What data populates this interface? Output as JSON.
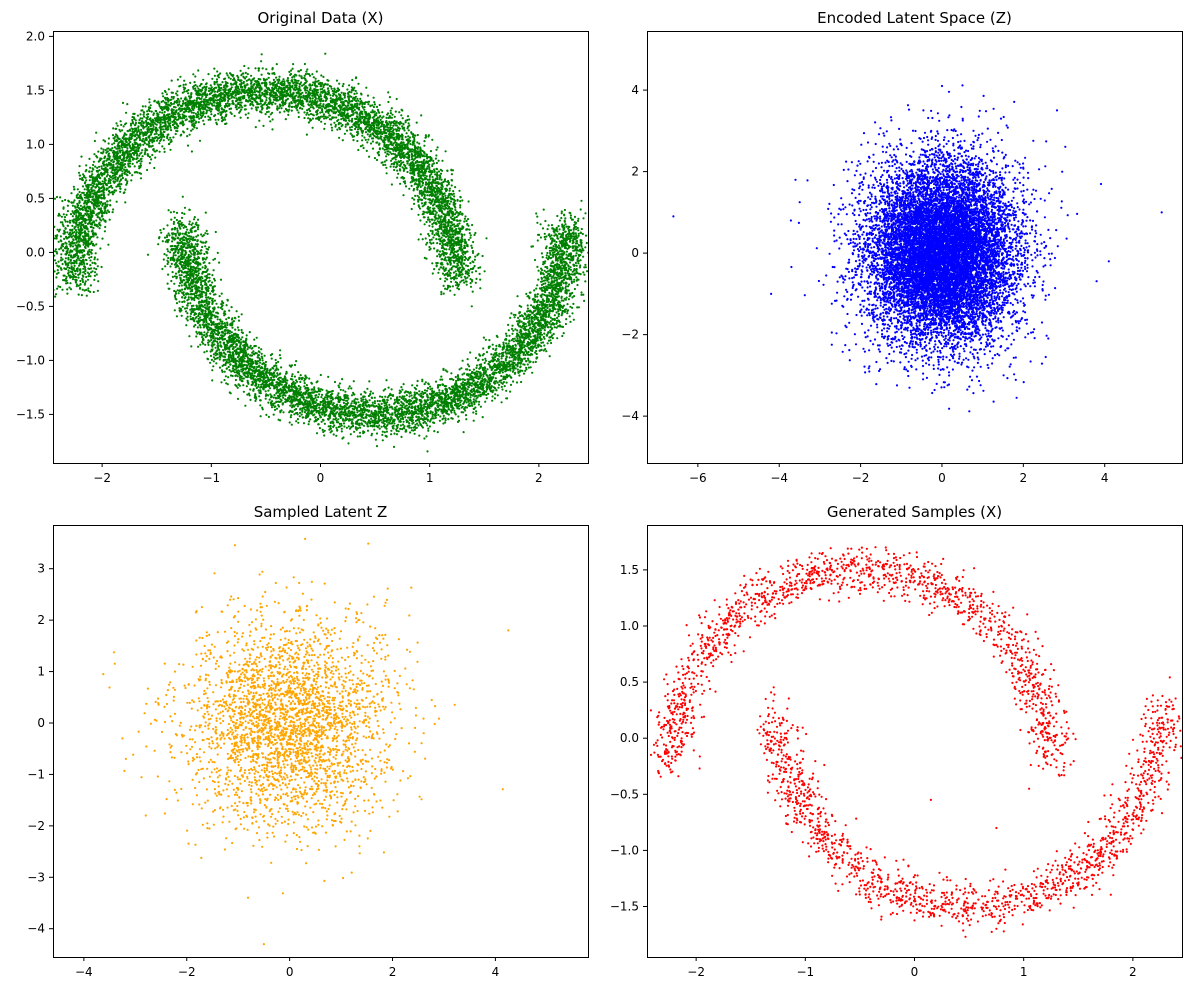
{
  "chart_data": [
    {
      "type": "scatter",
      "title": "Original Data (X)",
      "xlabel": "",
      "ylabel": "",
      "xlim": [
        -2.45,
        2.45
      ],
      "ylim": [
        -1.95,
        2.05
      ],
      "xticks": [
        -2,
        -1,
        0,
        1,
        2
      ],
      "yticks": [
        -1.5,
        -1.0,
        -0.5,
        0.0,
        0.5,
        1.0,
        1.5,
        2.0
      ],
      "xtick_labels": [
        "−2",
        "−1",
        "0",
        "1",
        "2"
      ],
      "ytick_labels": [
        "−1.5",
        "−1.0",
        "−0.5",
        "0.0",
        "0.5",
        "1.0",
        "1.5",
        "2.0"
      ],
      "grid": false,
      "color": "#008000",
      "series": [
        {
          "shape": "two-moons",
          "n_points": 12000,
          "upper_moon": {
            "center": [
              -0.5,
              -0.25
            ],
            "radius": 1.75,
            "from_angle_deg": 0,
            "to_angle_deg": 180
          },
          "lower_moon": {
            "center": [
              0.5,
              0.25
            ],
            "radius": 1.75,
            "from_angle_deg": 180,
            "to_angle_deg": 360
          },
          "noise_std": 0.1
        }
      ]
    },
    {
      "type": "scatter",
      "title": "Encoded Latent Space (Z)",
      "xlabel": "",
      "ylabel": "",
      "xlim": [
        -7.25,
        5.9
      ],
      "ylim": [
        -5.15,
        5.45
      ],
      "xticks": [
        -6,
        -4,
        -2,
        0,
        2,
        4
      ],
      "yticks": [
        -4,
        -2,
        0,
        2,
        4
      ],
      "xtick_labels": [
        "−6",
        "−4",
        "−2",
        "0",
        "2",
        "4"
      ],
      "ytick_labels": [
        "−4",
        "−2",
        "0",
        "2",
        "4"
      ],
      "grid": false,
      "color": "#0000ff",
      "series": [
        {
          "shape": "gaussian-blob",
          "n_points": 12000,
          "mean": [
            0,
            0
          ],
          "std": [
            0.9,
            1.1
          ],
          "outliers": [
            [
              -6.6,
              0.9
            ],
            [
              5.4,
              1.0
            ],
            [
              4.1,
              -0.2
            ],
            [
              -4.2,
              -1.0
            ],
            [
              -3.6,
              1.8
            ],
            [
              0.0,
              4.1
            ]
          ]
        }
      ]
    },
    {
      "type": "scatter",
      "title": "Sampled Latent Z",
      "xlabel": "",
      "ylabel": "",
      "xlim": [
        -4.6,
        5.8
      ],
      "ylim": [
        -4.55,
        3.85
      ],
      "xticks": [
        -4,
        -2,
        0,
        2,
        4
      ],
      "yticks": [
        -4,
        -3,
        -2,
        -1,
        0,
        1,
        2,
        3
      ],
      "xtick_labels": [
        "−4",
        "−2",
        "0",
        "2",
        "4"
      ],
      "ytick_labels": [
        "−4",
        "−3",
        "−2",
        "−1",
        "0",
        "1",
        "2",
        "3"
      ],
      "grid": false,
      "color": "#ffa500",
      "series": [
        {
          "shape": "gaussian-blob",
          "n_points": 3000,
          "mean": [
            0,
            0
          ],
          "std": [
            1.0,
            1.0
          ],
          "outliers": [
            [
              4.25,
              1.8
            ],
            [
              -0.5,
              -4.3
            ],
            [
              0.3,
              3.58
            ],
            [
              -3.25,
              -0.3
            ]
          ]
        }
      ]
    },
    {
      "type": "scatter",
      "title": "Generated Samples (X)",
      "xlabel": "",
      "ylabel": "",
      "xlim": [
        -2.45,
        2.45
      ],
      "ylim": [
        -1.95,
        1.9
      ],
      "xticks": [
        -2,
        -1,
        0,
        1,
        2
      ],
      "yticks": [
        -1.5,
        -1.0,
        -0.5,
        0.0,
        0.5,
        1.0,
        1.5
      ],
      "xtick_labels": [
        "−2",
        "−1",
        "0",
        "1",
        "2"
      ],
      "ytick_labels": [
        "−1.5",
        "−1.0",
        "−0.5",
        "0.0",
        "0.5",
        "1.0",
        "1.5"
      ],
      "grid": false,
      "color": "#ff0000",
      "series": [
        {
          "shape": "two-moons",
          "n_points": 3000,
          "upper_moon": {
            "center": [
              -0.5,
              -0.25
            ],
            "radius": 1.75,
            "from_angle_deg": 0,
            "to_angle_deg": 180
          },
          "lower_moon": {
            "center": [
              0.5,
              0.25
            ],
            "radius": 1.75,
            "from_angle_deg": 180,
            "to_angle_deg": 360
          },
          "noise_std": 0.1,
          "outliers": [
            [
              0.15,
              -0.55
            ],
            [
              1.05,
              -0.45
            ],
            [
              0.75,
              -0.8
            ],
            [
              -1.55,
              1.35
            ]
          ]
        }
      ]
    }
  ]
}
